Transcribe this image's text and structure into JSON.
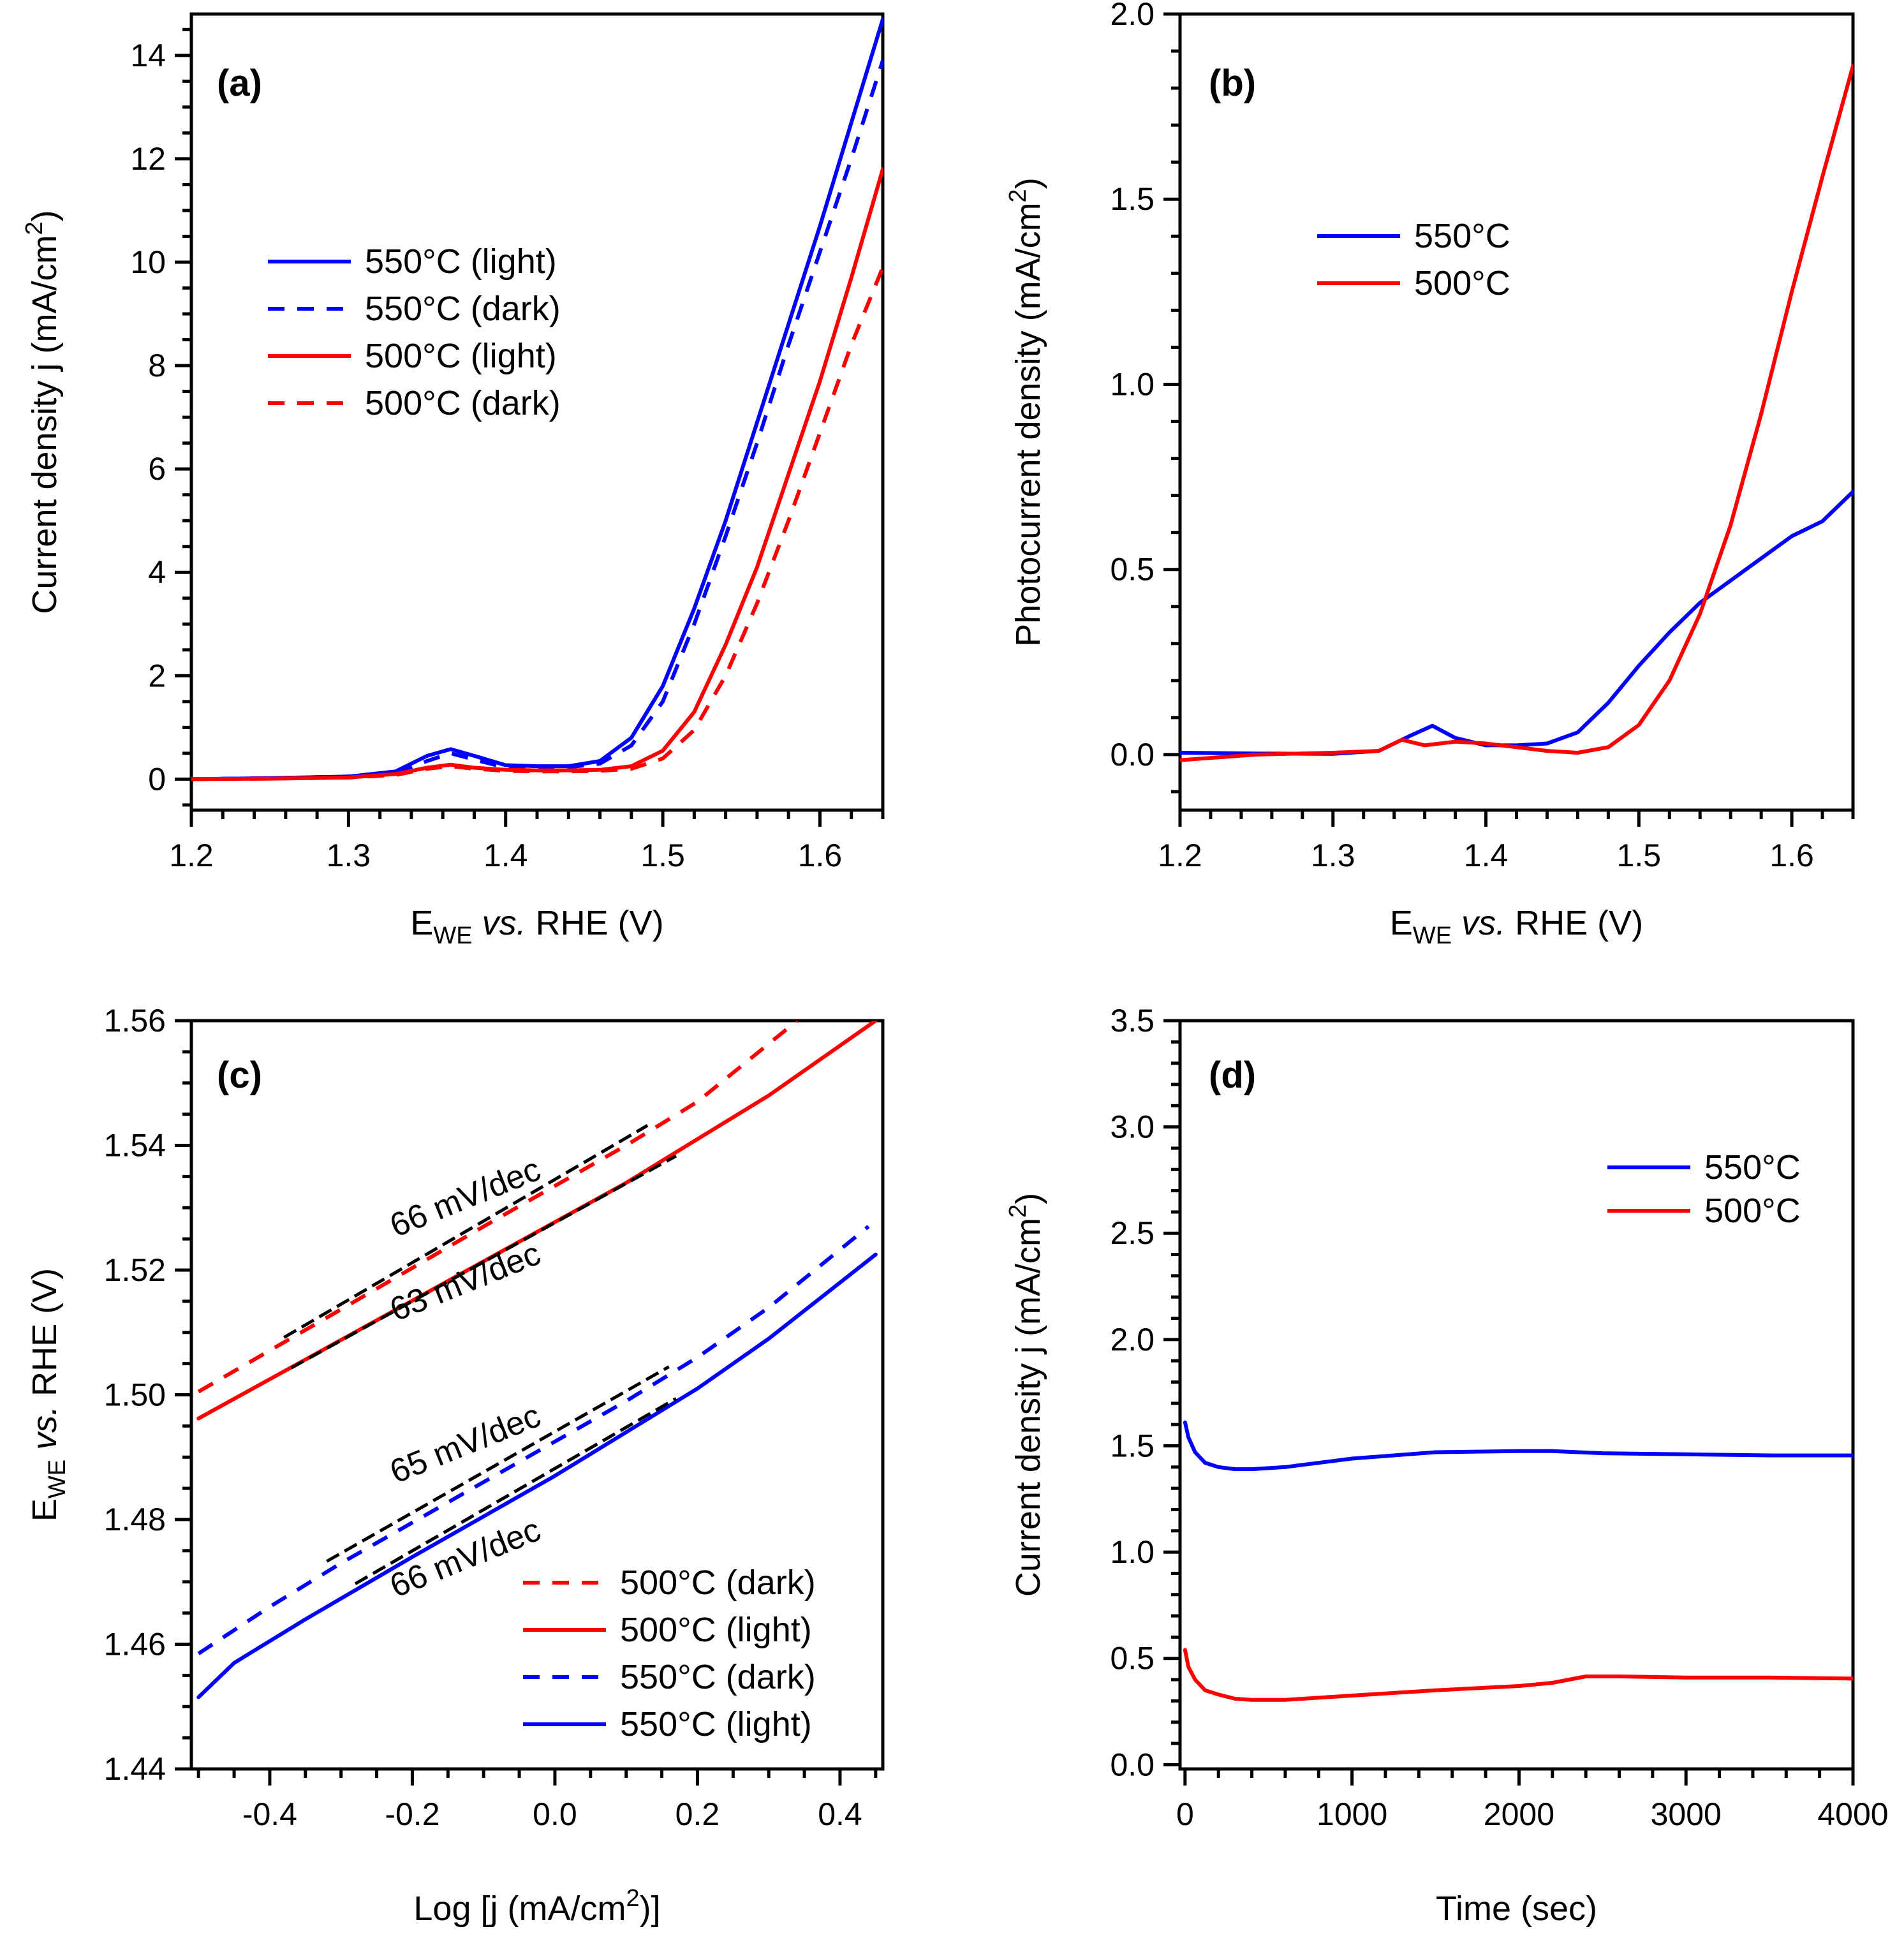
{
  "figure": {
    "panels": [
      "a",
      "b",
      "c",
      "d"
    ]
  },
  "chart_data": [
    {
      "id": "a",
      "type": "line",
      "tag": "(a)",
      "xlabel": {
        "main": "E",
        "sub": "WE",
        "italic": " vs.",
        "rest": " RHE (V)"
      },
      "ylabel": {
        "main": "Current density j (mA/cm",
        "sup": "2",
        "end": ")"
      },
      "xlim": [
        1.2,
        1.64
      ],
      "ylim": [
        -0.6,
        14.8
      ],
      "xticks": [
        1.2,
        1.3,
        1.4,
        1.5,
        1.6
      ],
      "xtick_labels": [
        "1.2",
        "1.3",
        "1.4",
        "1.5",
        "1.6"
      ],
      "yticks": [
        0,
        2,
        4,
        6,
        8,
        10,
        12,
        14
      ],
      "ytick_labels": [
        "0",
        "2",
        "4",
        "6",
        "8",
        "10",
        "12",
        "14"
      ],
      "xminor": 0.02,
      "yminor": 0.5,
      "legend_position": "upper-left",
      "series": [
        {
          "name": "550°C (light)",
          "color": "#0000ff",
          "dash": "solid",
          "x": [
            1.2,
            1.25,
            1.3,
            1.33,
            1.35,
            1.365,
            1.38,
            1.4,
            1.42,
            1.44,
            1.46,
            1.48,
            1.5,
            1.52,
            1.54,
            1.56,
            1.58,
            1.6,
            1.62,
            1.64
          ],
          "y": [
            0.0,
            0.02,
            0.05,
            0.15,
            0.45,
            0.58,
            0.45,
            0.27,
            0.25,
            0.25,
            0.35,
            0.8,
            1.8,
            3.3,
            5.0,
            6.9,
            8.8,
            10.7,
            12.7,
            14.7
          ]
        },
        {
          "name": "550°C (dark)",
          "color": "#0000ff",
          "dash": "dashed",
          "x": [
            1.2,
            1.25,
            1.3,
            1.33,
            1.35,
            1.365,
            1.38,
            1.4,
            1.42,
            1.44,
            1.46,
            1.48,
            1.5,
            1.52,
            1.54,
            1.56,
            1.58,
            1.6,
            1.62,
            1.64
          ],
          "y": [
            0.0,
            0.02,
            0.05,
            0.12,
            0.35,
            0.5,
            0.38,
            0.22,
            0.22,
            0.23,
            0.3,
            0.65,
            1.5,
            3.0,
            4.7,
            6.5,
            8.4,
            10.2,
            12.0,
            13.9
          ]
        },
        {
          "name": "500°C (light)",
          "color": "#ff0000",
          "dash": "solid",
          "x": [
            1.2,
            1.25,
            1.3,
            1.33,
            1.35,
            1.365,
            1.38,
            1.4,
            1.42,
            1.44,
            1.46,
            1.48,
            1.5,
            1.52,
            1.54,
            1.56,
            1.58,
            1.6,
            1.62,
            1.64
          ],
          "y": [
            0.0,
            0.01,
            0.03,
            0.1,
            0.22,
            0.28,
            0.22,
            0.18,
            0.17,
            0.17,
            0.18,
            0.25,
            0.55,
            1.3,
            2.6,
            4.1,
            5.9,
            7.7,
            9.7,
            11.8
          ]
        },
        {
          "name": "500°C (dark)",
          "color": "#ff0000",
          "dash": "dashed",
          "x": [
            1.2,
            1.25,
            1.3,
            1.33,
            1.35,
            1.365,
            1.38,
            1.4,
            1.42,
            1.44,
            1.46,
            1.48,
            1.5,
            1.52,
            1.54,
            1.56,
            1.58,
            1.6,
            1.62,
            1.64
          ],
          "y": [
            0.0,
            0.01,
            0.03,
            0.08,
            0.2,
            0.25,
            0.2,
            0.16,
            0.15,
            0.15,
            0.16,
            0.2,
            0.4,
            0.95,
            2.0,
            3.4,
            5.0,
            6.7,
            8.4,
            9.9
          ]
        }
      ]
    },
    {
      "id": "b",
      "type": "line",
      "tag": "(b)",
      "xlabel": {
        "main": "E",
        "sub": "WE",
        "italic": " vs.",
        "rest": " RHE (V)"
      },
      "ylabel": {
        "main": "Photocurrent density (mA/cm",
        "sup": "2",
        "end": ")"
      },
      "xlim": [
        1.2,
        1.64
      ],
      "ylim": [
        -0.15,
        2.0
      ],
      "xticks": [
        1.2,
        1.3,
        1.4,
        1.5,
        1.6
      ],
      "xtick_labels": [
        "1.2",
        "1.3",
        "1.4",
        "1.5",
        "1.6"
      ],
      "yticks": [
        0.0,
        0.5,
        1.0,
        1.5,
        2.0
      ],
      "ytick_labels": [
        "0.0",
        "0.5",
        "1.0",
        "1.5",
        "2.0"
      ],
      "xminor": 0.02,
      "yminor": 0.1,
      "legend_position": "upper-left",
      "series": [
        {
          "name": "550°C",
          "color": "#0000ff",
          "dash": "solid",
          "x": [
            1.2,
            1.25,
            1.3,
            1.33,
            1.35,
            1.365,
            1.38,
            1.4,
            1.42,
            1.44,
            1.46,
            1.48,
            1.5,
            1.52,
            1.54,
            1.56,
            1.58,
            1.6,
            1.62,
            1.64
          ],
          "y": [
            0.005,
            0.003,
            0.002,
            0.01,
            0.05,
            0.078,
            0.045,
            0.025,
            0.025,
            0.03,
            0.06,
            0.14,
            0.24,
            0.33,
            0.41,
            0.47,
            0.53,
            0.59,
            0.63,
            0.71
          ]
        },
        {
          "name": "500°C",
          "color": "#ff0000",
          "dash": "solid",
          "x": [
            1.2,
            1.25,
            1.3,
            1.33,
            1.345,
            1.36,
            1.38,
            1.4,
            1.42,
            1.44,
            1.46,
            1.48,
            1.5,
            1.52,
            1.54,
            1.56,
            1.58,
            1.6,
            1.62,
            1.64
          ],
          "y": [
            -0.015,
            0.0,
            0.005,
            0.01,
            0.04,
            0.025,
            0.035,
            0.03,
            0.02,
            0.01,
            0.005,
            0.02,
            0.08,
            0.2,
            0.38,
            0.62,
            0.92,
            1.25,
            1.56,
            1.86
          ]
        }
      ]
    },
    {
      "id": "c",
      "type": "line",
      "tag": "(c)",
      "xlabel": {
        "main": "Log [j (mA/cm",
        "sup": "2",
        "end": ")]"
      },
      "ylabel": {
        "main": "E",
        "sub": "WE",
        "italic": " vs.",
        "rest": " RHE (V)"
      },
      "xlim": [
        -0.51,
        0.46
      ],
      "ylim": [
        1.44,
        1.56
      ],
      "xticks": [
        -0.4,
        -0.2,
        0.0,
        0.2,
        0.4
      ],
      "xtick_labels": [
        "-0.4",
        "-0.2",
        "0.0",
        "0.2",
        "0.4"
      ],
      "yticks": [
        1.44,
        1.46,
        1.48,
        1.5,
        1.52,
        1.54,
        1.56
      ],
      "ytick_labels": [
        "1.44",
        "1.46",
        "1.48",
        "1.50",
        "1.52",
        "1.54",
        "1.56"
      ],
      "xminor": 0.05,
      "yminor": 0.005,
      "legend_position": "bottom-right",
      "series": [
        {
          "name": "500°C (dark)",
          "color": "#ff0000",
          "dash": "dashed",
          "x": [
            -0.5,
            -0.3,
            -0.1,
            0.1,
            0.2,
            0.34
          ],
          "y": [
            1.5005,
            1.5137,
            1.527,
            1.54,
            1.547,
            1.56
          ]
        },
        {
          "name": "500°C (light)",
          "color": "#ff0000",
          "dash": "solid",
          "x": [
            -0.5,
            -0.3,
            -0.1,
            0.1,
            0.2,
            0.3,
            0.45
          ],
          "y": [
            1.4962,
            1.5088,
            1.5214,
            1.534,
            1.541,
            1.548,
            1.56
          ]
        },
        {
          "name": "550°C (dark)",
          "color": "#0000ff",
          "dash": "dashed",
          "x": [
            -0.5,
            -0.4,
            -0.3,
            -0.1,
            0.1,
            0.2,
            0.3,
            0.44
          ],
          "y": [
            1.4585,
            1.466,
            1.473,
            1.486,
            1.499,
            1.506,
            1.514,
            1.527
          ]
        },
        {
          "name": "550°C (light)",
          "color": "#0000ff",
          "dash": "solid",
          "x": [
            -0.5,
            -0.45,
            -0.35,
            -0.2,
            0.0,
            0.2,
            0.3,
            0.45
          ],
          "y": [
            1.4515,
            1.457,
            1.464,
            1.474,
            1.487,
            1.501,
            1.509,
            1.5225
          ]
        }
      ],
      "fits": [
        {
          "x": [
            -0.38,
            0.13
          ],
          "y": [
            1.5092,
            1.5432
          ]
        },
        {
          "x": [
            -0.37,
            0.17
          ],
          "y": [
            1.5043,
            1.5383
          ]
        },
        {
          "x": [
            -0.32,
            0.16
          ],
          "y": [
            1.4733,
            1.5045
          ]
        },
        {
          "x": [
            -0.28,
            0.17
          ],
          "y": [
            1.4697,
            1.4994
          ]
        }
      ],
      "annotations": [
        {
          "text": "66 mV/dec",
          "x": -0.12,
          "y": 1.53
        },
        {
          "text": "63 mV/dec",
          "x": -0.12,
          "y": 1.5165
        },
        {
          "text": "65 mV/dec",
          "x": -0.12,
          "y": 1.4905
        },
        {
          "text": "66 mV/dec",
          "x": -0.12,
          "y": 1.4722
        }
      ]
    },
    {
      "id": "d",
      "type": "line",
      "tag": "(d)",
      "xlabel": {
        "main": "Time (sec)"
      },
      "ylabel": {
        "main": "Current density j (mA/cm",
        "sup": "2",
        "end": ")"
      },
      "xlim": [
        -30,
        4000
      ],
      "ylim": [
        -0.02,
        3.5
      ],
      "xticks": [
        0,
        1000,
        2000,
        3000,
        4000
      ],
      "xtick_labels": [
        "0",
        "1000",
        "2000",
        "3000",
        "4000"
      ],
      "yticks": [
        0.0,
        0.5,
        1.0,
        1.5,
        2.0,
        2.5,
        3.0,
        3.5
      ],
      "ytick_labels": [
        "0.0",
        "0.5",
        "1.0",
        "1.5",
        "2.0",
        "2.5",
        "3.0",
        "3.5"
      ],
      "xminor": 200,
      "yminor": 0.1,
      "legend_position": "upper-right",
      "series": [
        {
          "name": "550°C",
          "color": "#0000ff",
          "dash": "solid",
          "x": [
            0,
            20,
            60,
            120,
            200,
            300,
            400,
            600,
            1000,
            1500,
            2000,
            2200,
            2500,
            3000,
            3500,
            4000
          ],
          "y": [
            1.61,
            1.54,
            1.47,
            1.42,
            1.4,
            1.39,
            1.39,
            1.4,
            1.44,
            1.47,
            1.475,
            1.475,
            1.465,
            1.46,
            1.455,
            1.455
          ]
        },
        {
          "name": "500°C",
          "color": "#ff0000",
          "dash": "solid",
          "x": [
            0,
            20,
            60,
            120,
            200,
            300,
            400,
            600,
            1000,
            1500,
            2000,
            2200,
            2400,
            2600,
            3000,
            3500,
            4000
          ],
          "y": [
            0.54,
            0.46,
            0.4,
            0.35,
            0.33,
            0.31,
            0.305,
            0.305,
            0.325,
            0.35,
            0.37,
            0.385,
            0.415,
            0.415,
            0.41,
            0.41,
            0.405
          ]
        }
      ]
    }
  ]
}
